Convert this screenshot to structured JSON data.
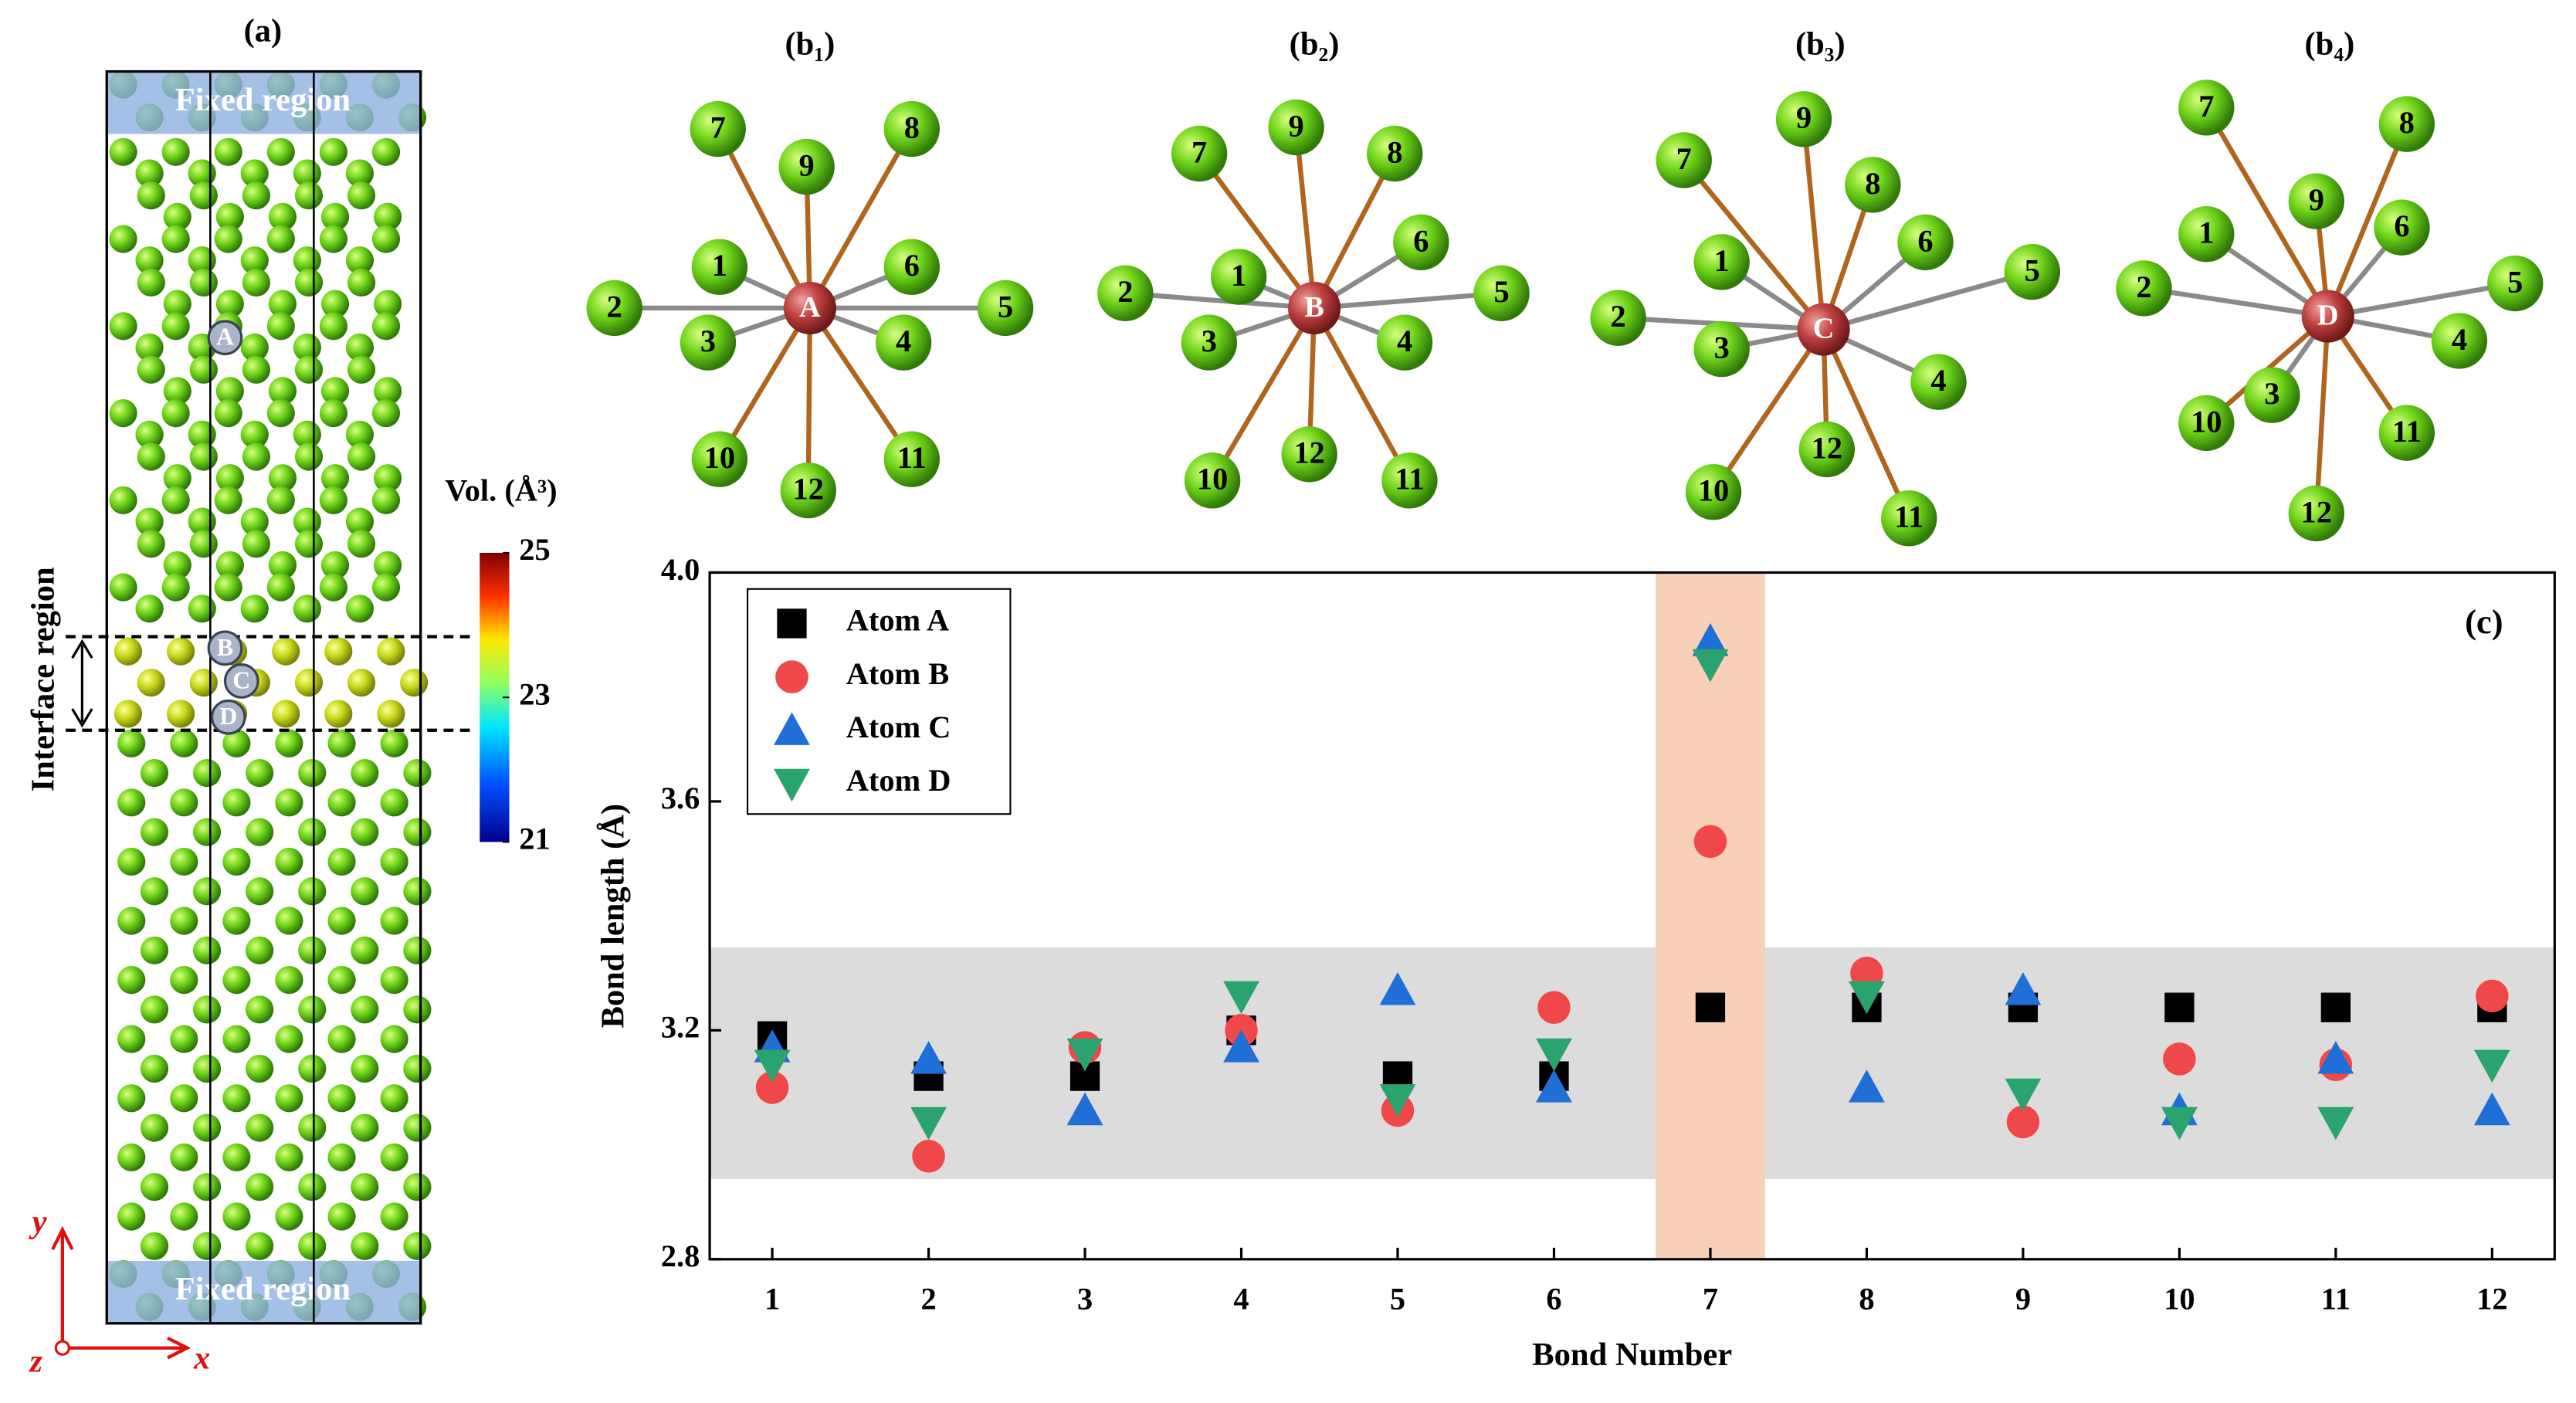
{
  "panel_a": {
    "label": "(a)",
    "fixed_top": "Fixed region",
    "fixed_bottom": "Fixed region",
    "interface": "Interface region",
    "atoms": [
      "A",
      "B",
      "C",
      "D"
    ],
    "axes": [
      "y",
      "x",
      "z"
    ]
  },
  "colorbar": {
    "label": "Vol. (Å³)",
    "lim": [
      21,
      25
    ],
    "ticks": [
      21,
      23,
      25
    ]
  },
  "panels_b": [
    {
      "label": "(b₁)",
      "center": "A",
      "neighbors": [
        "1",
        "2",
        "3",
        "4",
        "5",
        "6",
        "7",
        "8",
        "9",
        "10",
        "11",
        "12"
      ]
    },
    {
      "label": "(b₂)",
      "center": "B",
      "neighbors": [
        "1",
        "2",
        "3",
        "4",
        "5",
        "6",
        "7",
        "8",
        "9",
        "10",
        "11",
        "12"
      ]
    },
    {
      "label": "(b₃)",
      "center": "C",
      "neighbors": [
        "1",
        "2",
        "3",
        "4",
        "5",
        "6",
        "7",
        "8",
        "9",
        "10",
        "11",
        "12"
      ]
    },
    {
      "label": "(b₄)",
      "center": "D",
      "neighbors": [
        "1",
        "2",
        "3",
        "4",
        "5",
        "6",
        "7",
        "8",
        "9",
        "10",
        "11",
        "12"
      ]
    }
  ],
  "chart_data": {
    "type": "scatter",
    "panel_label": "(c)",
    "x_label": "Bond Number",
    "y_label": "Bond length (Å)",
    "x": [
      1,
      2,
      3,
      4,
      5,
      6,
      7,
      8,
      9,
      10,
      11,
      12
    ],
    "xlim": [
      0.6,
      12.4
    ],
    "xticks": [
      1,
      2,
      3,
      4,
      5,
      6,
      7,
      8,
      9,
      10,
      11,
      12
    ],
    "ylim": [
      2.8,
      4.0
    ],
    "yticks": [
      2.8,
      3.2,
      3.6,
      {
        "value": 4,
        "label": "4.0"
      }
    ],
    "highlight_y": [
      2.94,
      3.345
    ],
    "highlight_x": [
      6.65,
      7.35
    ],
    "legend": "upper left",
    "series": [
      {
        "name": "Atom A",
        "color": "#000000",
        "marker": "square",
        "values": [
          3.19,
          3.12,
          3.12,
          3.2,
          3.12,
          3.12,
          3.24,
          3.24,
          3.24,
          3.24,
          3.24,
          3.24
        ]
      },
      {
        "name": "Atom B",
        "color": "#f04848",
        "marker": "circle",
        "values": [
          3.1,
          2.98,
          3.17,
          3.2,
          3.06,
          3.24,
          3.53,
          3.3,
          3.04,
          3.15,
          3.14,
          3.26
        ]
      },
      {
        "name": "Atom C",
        "color": "#1f6fd6",
        "marker": "triangle-up",
        "values": [
          3.17,
          3.15,
          3.06,
          3.17,
          3.27,
          3.1,
          3.88,
          3.1,
          3.27,
          3.06,
          3.15,
          3.06
        ]
      },
      {
        "name": "Atom D",
        "color": "#2aa36e",
        "marker": "triangle-down",
        "values": [
          3.14,
          3.04,
          3.16,
          3.26,
          3.08,
          3.16,
          3.84,
          3.26,
          3.09,
          3.04,
          3.04,
          3.14
        ]
      }
    ]
  }
}
